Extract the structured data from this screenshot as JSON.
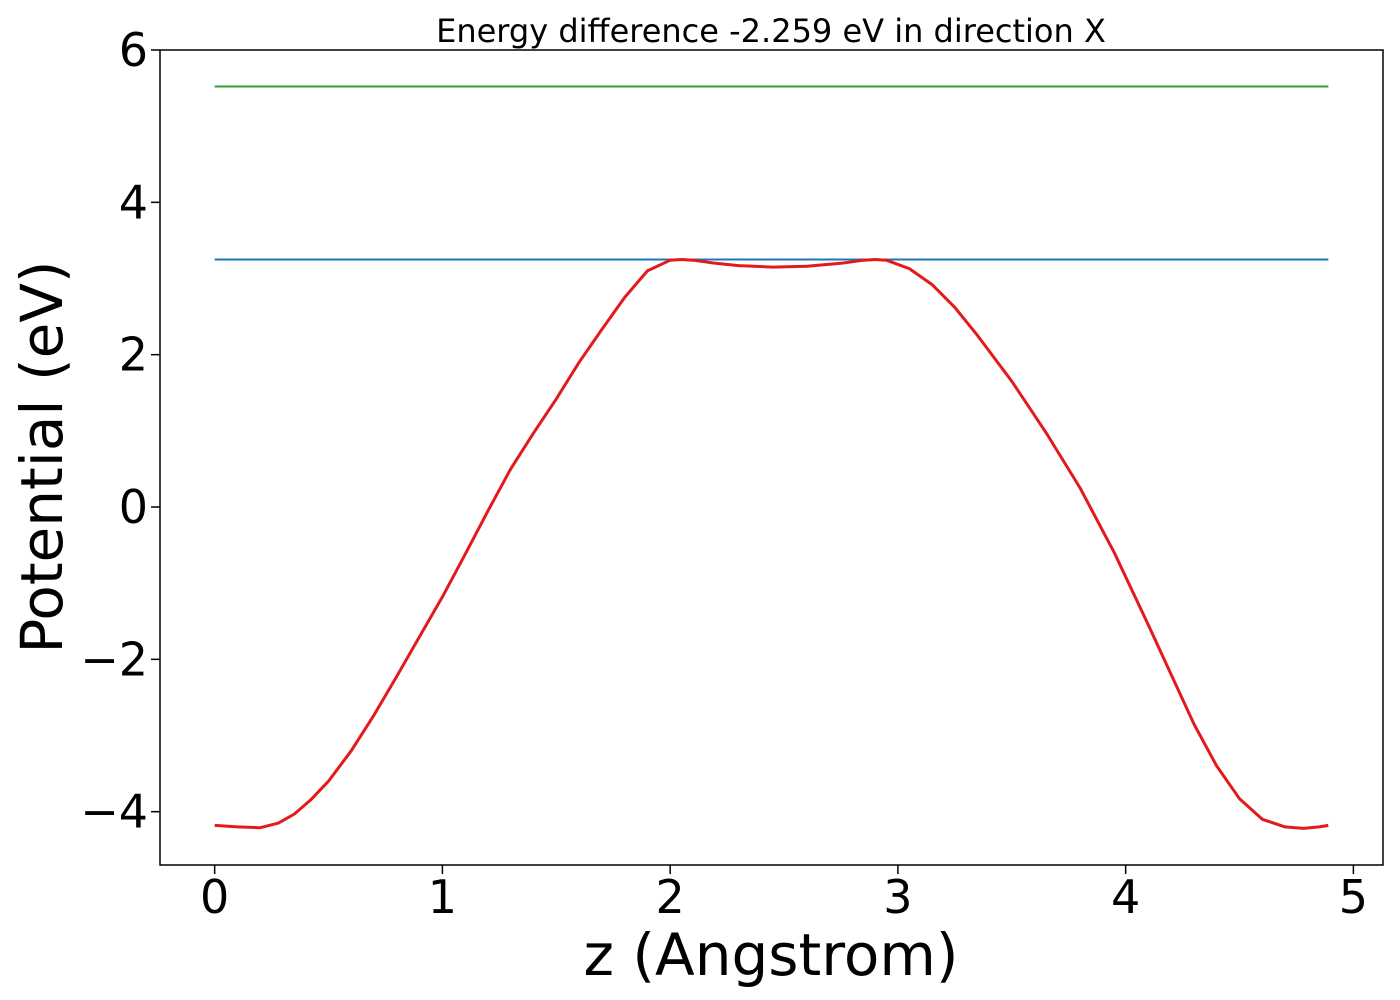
{
  "chart_data": {
    "type": "line",
    "title": "Energy difference -2.259 eV in direction X",
    "xlabel": "z (Angstrom)",
    "ylabel": "Potential (eV)",
    "xlim": [
      -0.24,
      5.13
    ],
    "ylim": [
      -4.7,
      6.0
    ],
    "xticks": [
      0,
      1,
      2,
      3,
      4,
      5
    ],
    "xtick_labels": [
      "0",
      "1",
      "2",
      "3",
      "4",
      "5"
    ],
    "yticks": [
      -4,
      -2,
      0,
      2,
      4,
      6
    ],
    "ytick_labels": [
      "−4",
      "−2",
      "0",
      "2",
      "4",
      "6"
    ],
    "grid": false,
    "series": [
      {
        "kind": "hline",
        "color": "#2ca02c",
        "y": 5.52,
        "x": [
          0,
          4.89
        ]
      },
      {
        "kind": "hline",
        "color": "#1f77b4",
        "y": 3.25,
        "x": [
          0,
          4.89
        ]
      },
      {
        "kind": "curve",
        "color": "#e31a1c",
        "x": [
          0,
          0.1,
          0.2,
          0.28,
          0.35,
          0.42,
          0.5,
          0.6,
          0.7,
          0.8,
          0.9,
          1.0,
          1.1,
          1.2,
          1.3,
          1.4,
          1.5,
          1.6,
          1.7,
          1.8,
          1.9,
          2.0,
          2.05,
          2.1,
          2.2,
          2.3,
          2.45,
          2.6,
          2.75,
          2.85,
          2.9,
          2.95,
          3.05,
          3.15,
          3.25,
          3.35,
          3.5,
          3.65,
          3.8,
          3.95,
          4.1,
          4.2,
          4.3,
          4.4,
          4.5,
          4.6,
          4.7,
          4.78,
          4.85,
          4.89
        ],
        "y": [
          -4.18,
          -4.2,
          -4.21,
          -4.15,
          -4.03,
          -3.85,
          -3.6,
          -3.2,
          -2.73,
          -2.22,
          -1.7,
          -1.18,
          -0.62,
          -0.05,
          0.5,
          0.97,
          1.42,
          1.9,
          2.33,
          2.75,
          3.1,
          3.24,
          3.25,
          3.24,
          3.2,
          3.17,
          3.15,
          3.16,
          3.2,
          3.24,
          3.25,
          3.24,
          3.13,
          2.92,
          2.62,
          2.25,
          1.65,
          0.98,
          0.25,
          -0.6,
          -1.55,
          -2.2,
          -2.85,
          -3.4,
          -3.83,
          -4.1,
          -4.2,
          -4.22,
          -4.2,
          -4.18
        ]
      }
    ]
  }
}
